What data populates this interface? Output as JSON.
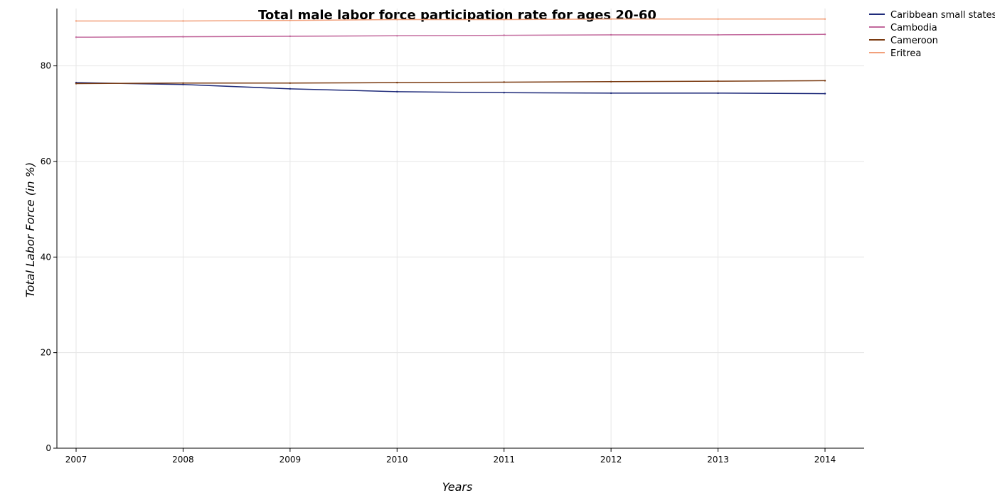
{
  "chart_data": {
    "type": "line",
    "title": "Total male labor force participation rate for ages 20-60",
    "xlabel": "Years",
    "ylabel": "Total Labor Force (in %)",
    "x": [
      "2007",
      "2008",
      "2009",
      "2010",
      "2011",
      "2012",
      "2013",
      "2014"
    ],
    "ylim": [
      0,
      92
    ],
    "yticks": [
      0,
      20,
      40,
      60,
      80
    ],
    "grid": true,
    "legend_position": "top-right",
    "series": [
      {
        "name": "Caribbean small states",
        "color": "#1f2b7a",
        "values": [
          76.5,
          76.1,
          75.2,
          74.6,
          74.4,
          74.3,
          74.3,
          74.2
        ]
      },
      {
        "name": "Cambodia",
        "color": "#c2689c",
        "values": [
          86.0,
          86.1,
          86.2,
          86.3,
          86.4,
          86.5,
          86.5,
          86.6
        ]
      },
      {
        "name": "Cameroon",
        "color": "#7a3a10",
        "values": [
          76.3,
          76.4,
          76.4,
          76.5,
          76.6,
          76.7,
          76.8,
          76.9
        ]
      },
      {
        "name": "Eritrea",
        "color": "#f2a07b",
        "values": [
          89.4,
          89.4,
          89.5,
          89.7,
          89.7,
          89.8,
          89.8,
          89.8
        ]
      }
    ]
  }
}
